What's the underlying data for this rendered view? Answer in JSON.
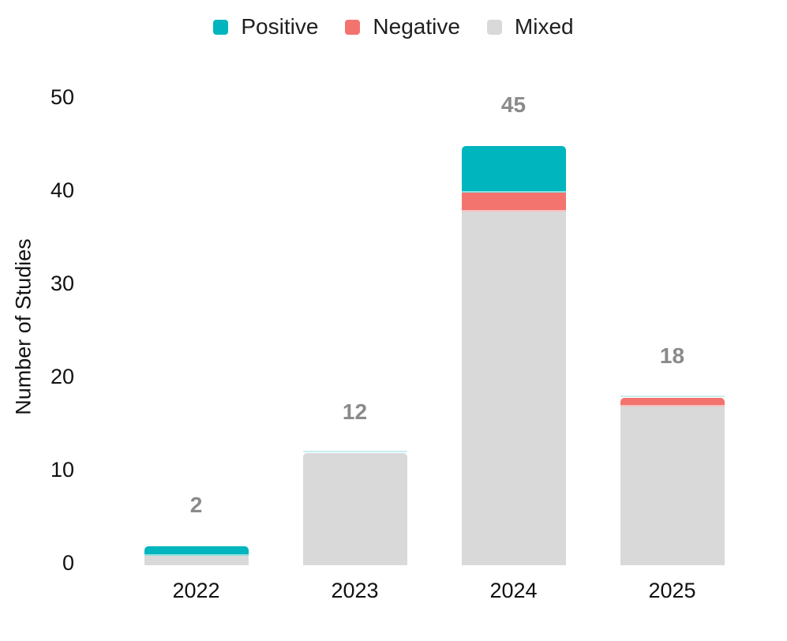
{
  "chart_data": {
    "type": "bar",
    "stacked": true,
    "title": "",
    "xlabel": "",
    "ylabel": "Number of Studies",
    "categories": [
      "2022",
      "2023",
      "2024",
      "2025"
    ],
    "series": [
      {
        "name": "Positive",
        "color": "#00b5bd",
        "values": [
          1,
          0,
          5,
          0
        ]
      },
      {
        "name": "Negative",
        "color": "#f3736f",
        "values": [
          0,
          0,
          2,
          1
        ]
      },
      {
        "name": "Mixed",
        "color": "#d9d9d9",
        "values": [
          1,
          12,
          38,
          17
        ]
      }
    ],
    "stack_order_top_to_bottom": [
      "Positive",
      "Negative",
      "Mixed"
    ],
    "totals": [
      2,
      12,
      45,
      18
    ],
    "total_label_color": "#8a8a8a",
    "yticks": [
      0,
      10,
      20,
      30,
      40,
      50
    ],
    "ylim": [
      0,
      50
    ],
    "grid": false,
    "legend_position": "top-center",
    "axis_text_color": "#111111",
    "background_color": "#ffffff",
    "positive_zero_hairline_color": "rgba(0,181,189,0.22)"
  }
}
